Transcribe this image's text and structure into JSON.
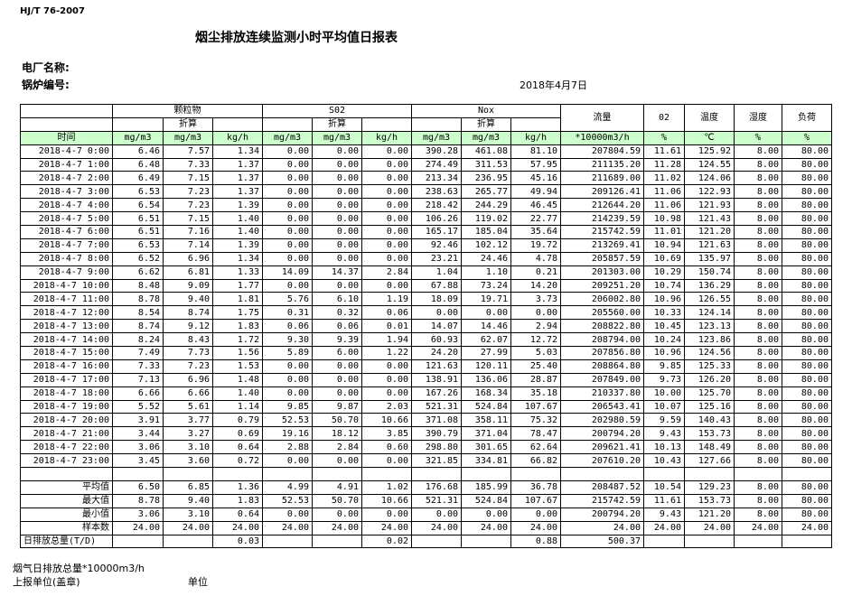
{
  "header": {
    "standard": "HJ/T  76-2007",
    "title": "烟尘排放连续监测小时平均值日报表",
    "plant_label": "电厂名称:",
    "boiler_label": "锅炉编号:",
    "date": "2018年4月7日"
  },
  "table": {
    "groups": [
      "颗粒物",
      "S02",
      "Nox"
    ],
    "sub": "折算",
    "side": [
      "流量",
      "02",
      "温度",
      "湿度",
      "负荷"
    ],
    "units": [
      "时间",
      "mg/m3",
      "mg/m3",
      "kg/h",
      "mg/m3",
      "mg/m3",
      "kg/h",
      "mg/m3",
      "mg/m3",
      "kg/h",
      "*10000m3/h",
      "%",
      "℃",
      "%",
      "%"
    ],
    "rows": [
      [
        "2018-4-7 0:00",
        "6.46",
        "7.57",
        "1.34",
        "0.00",
        "0.00",
        "0.00",
        "390.28",
        "461.08",
        "81.10",
        "207804.59",
        "11.61",
        "125.92",
        "8.00",
        "80.00"
      ],
      [
        "2018-4-7 1:00",
        "6.48",
        "7.33",
        "1.37",
        "0.00",
        "0.00",
        "0.00",
        "274.49",
        "311.53",
        "57.95",
        "211135.20",
        "11.28",
        "124.55",
        "8.00",
        "80.00"
      ],
      [
        "2018-4-7 2:00",
        "6.49",
        "7.15",
        "1.37",
        "0.00",
        "0.00",
        "0.00",
        "213.34",
        "236.95",
        "45.16",
        "211689.00",
        "11.02",
        "124.06",
        "8.00",
        "80.00"
      ],
      [
        "2018-4-7 3:00",
        "6.53",
        "7.23",
        "1.37",
        "0.00",
        "0.00",
        "0.00",
        "238.63",
        "265.77",
        "49.94",
        "209126.41",
        "11.06",
        "122.93",
        "8.00",
        "80.00"
      ],
      [
        "2018-4-7 4:00",
        "6.54",
        "7.23",
        "1.39",
        "0.00",
        "0.00",
        "0.00",
        "218.42",
        "244.29",
        "46.45",
        "212644.20",
        "11.06",
        "121.93",
        "8.00",
        "80.00"
      ],
      [
        "2018-4-7 5:00",
        "6.51",
        "7.15",
        "1.40",
        "0.00",
        "0.00",
        "0.00",
        "106.26",
        "119.02",
        "22.77",
        "214239.59",
        "10.98",
        "121.43",
        "8.00",
        "80.00"
      ],
      [
        "2018-4-7 6:00",
        "6.51",
        "7.16",
        "1.40",
        "0.00",
        "0.00",
        "0.00",
        "165.17",
        "185.04",
        "35.64",
        "215742.59",
        "11.01",
        "121.20",
        "8.00",
        "80.00"
      ],
      [
        "2018-4-7 7:00",
        "6.53",
        "7.14",
        "1.39",
        "0.00",
        "0.00",
        "0.00",
        "92.46",
        "102.12",
        "19.72",
        "213269.41",
        "10.94",
        "121.63",
        "8.00",
        "80.00"
      ],
      [
        "2018-4-7 8:00",
        "6.52",
        "6.96",
        "1.34",
        "0.00",
        "0.00",
        "0.00",
        "23.21",
        "24.46",
        "4.78",
        "205857.59",
        "10.69",
        "135.97",
        "8.00",
        "80.00"
      ],
      [
        "2018-4-7 9:00",
        "6.62",
        "6.81",
        "1.33",
        "14.09",
        "14.37",
        "2.84",
        "1.04",
        "1.10",
        "0.21",
        "201303.00",
        "10.29",
        "150.74",
        "8.00",
        "80.00"
      ],
      [
        "2018-4-7 10:00",
        "8.48",
        "9.09",
        "1.77",
        "0.00",
        "0.00",
        "0.00",
        "67.88",
        "73.24",
        "14.20",
        "209251.20",
        "10.74",
        "136.29",
        "8.00",
        "80.00"
      ],
      [
        "2018-4-7 11:00",
        "8.78",
        "9.40",
        "1.81",
        "5.76",
        "6.10",
        "1.19",
        "18.09",
        "19.71",
        "3.73",
        "206002.80",
        "10.96",
        "126.55",
        "8.00",
        "80.00"
      ],
      [
        "2018-4-7 12:00",
        "8.54",
        "8.74",
        "1.75",
        "0.31",
        "0.32",
        "0.06",
        "0.00",
        "0.00",
        "0.00",
        "205560.00",
        "10.33",
        "124.14",
        "8.00",
        "80.00"
      ],
      [
        "2018-4-7 13:00",
        "8.74",
        "9.12",
        "1.83",
        "0.06",
        "0.06",
        "0.01",
        "14.07",
        "14.46",
        "2.94",
        "208822.80",
        "10.45",
        "123.13",
        "8.00",
        "80.00"
      ],
      [
        "2018-4-7 14:00",
        "8.24",
        "8.43",
        "1.72",
        "9.30",
        "9.39",
        "1.94",
        "60.93",
        "62.07",
        "12.72",
        "208794.00",
        "10.24",
        "123.86",
        "8.00",
        "80.00"
      ],
      [
        "2018-4-7 15:00",
        "7.49",
        "7.73",
        "1.56",
        "5.89",
        "6.00",
        "1.22",
        "24.20",
        "27.99",
        "5.03",
        "207856.80",
        "10.96",
        "124.56",
        "8.00",
        "80.00"
      ],
      [
        "2018-4-7 16:00",
        "7.33",
        "7.23",
        "1.53",
        "0.00",
        "0.00",
        "0.00",
        "121.63",
        "120.11",
        "25.40",
        "208864.80",
        "9.85",
        "125.33",
        "8.00",
        "80.00"
      ],
      [
        "2018-4-7 17:00",
        "7.13",
        "6.96",
        "1.48",
        "0.00",
        "0.00",
        "0.00",
        "138.91",
        "136.06",
        "28.87",
        "207849.00",
        "9.73",
        "126.20",
        "8.00",
        "80.00"
      ],
      [
        "2018-4-7 18:00",
        "6.66",
        "6.66",
        "1.40",
        "0.00",
        "0.00",
        "0.00",
        "167.26",
        "168.34",
        "35.18",
        "210337.80",
        "10.00",
        "125.70",
        "8.00",
        "80.00"
      ],
      [
        "2018-4-7 19:00",
        "5.52",
        "5.61",
        "1.14",
        "9.85",
        "9.87",
        "2.03",
        "521.31",
        "524.84",
        "107.67",
        "206543.41",
        "10.07",
        "125.16",
        "8.00",
        "80.00"
      ],
      [
        "2018-4-7 20:00",
        "3.91",
        "3.77",
        "0.79",
        "52.53",
        "50.70",
        "10.66",
        "371.08",
        "358.11",
        "75.32",
        "202980.59",
        "9.59",
        "140.43",
        "8.00",
        "80.00"
      ],
      [
        "2018-4-7 21:00",
        "3.44",
        "3.27",
        "0.69",
        "19.16",
        "18.12",
        "3.85",
        "390.79",
        "371.04",
        "78.47",
        "200794.20",
        "9.43",
        "153.73",
        "8.00",
        "80.00"
      ],
      [
        "2018-4-7 22:00",
        "3.06",
        "3.10",
        "0.64",
        "2.88",
        "2.84",
        "0.60",
        "298.80",
        "301.65",
        "62.64",
        "209621.41",
        "10.13",
        "148.49",
        "8.00",
        "80.00"
      ],
      [
        "2018-4-7 23:00",
        "3.45",
        "3.60",
        "0.72",
        "0.00",
        "0.00",
        "0.00",
        "321.85",
        "334.81",
        "66.82",
        "207610.20",
        "10.43",
        "127.66",
        "8.00",
        "80.00"
      ]
    ],
    "summary": [
      [
        "平均值",
        "6.50",
        "6.85",
        "1.36",
        "4.99",
        "4.91",
        "1.02",
        "176.68",
        "185.99",
        "36.78",
        "208487.52",
        "10.54",
        "129.23",
        "8.00",
        "80.00"
      ],
      [
        "最大值",
        "8.78",
        "9.40",
        "1.83",
        "52.53",
        "50.70",
        "10.66",
        "521.31",
        "524.84",
        "107.67",
        "215742.59",
        "11.61",
        "153.73",
        "8.00",
        "80.00"
      ],
      [
        "最小值",
        "3.06",
        "3.10",
        "0.64",
        "0.00",
        "0.00",
        "0.00",
        "0.00",
        "0.00",
        "0.00",
        "200794.20",
        "9.43",
        "121.20",
        "8.00",
        "80.00"
      ],
      [
        "样本数",
        "24.00",
        "24.00",
        "24.00",
        "24.00",
        "24.00",
        "24.00",
        "24.00",
        "24.00",
        "24.00",
        "24.00",
        "24.00",
        "24.00",
        "24.00",
        "24.00"
      ]
    ],
    "total": [
      "日排放总量(T/D)",
      null,
      null,
      "0.03",
      null,
      null,
      "0.02",
      null,
      null,
      "0.88",
      "500.37",
      null,
      null,
      null,
      null
    ]
  },
  "footer": {
    "flue_gas": "烟气日排放总量*10000m3/h",
    "unit_stamp": "上报单位(盖章)",
    "unit": "单位"
  }
}
